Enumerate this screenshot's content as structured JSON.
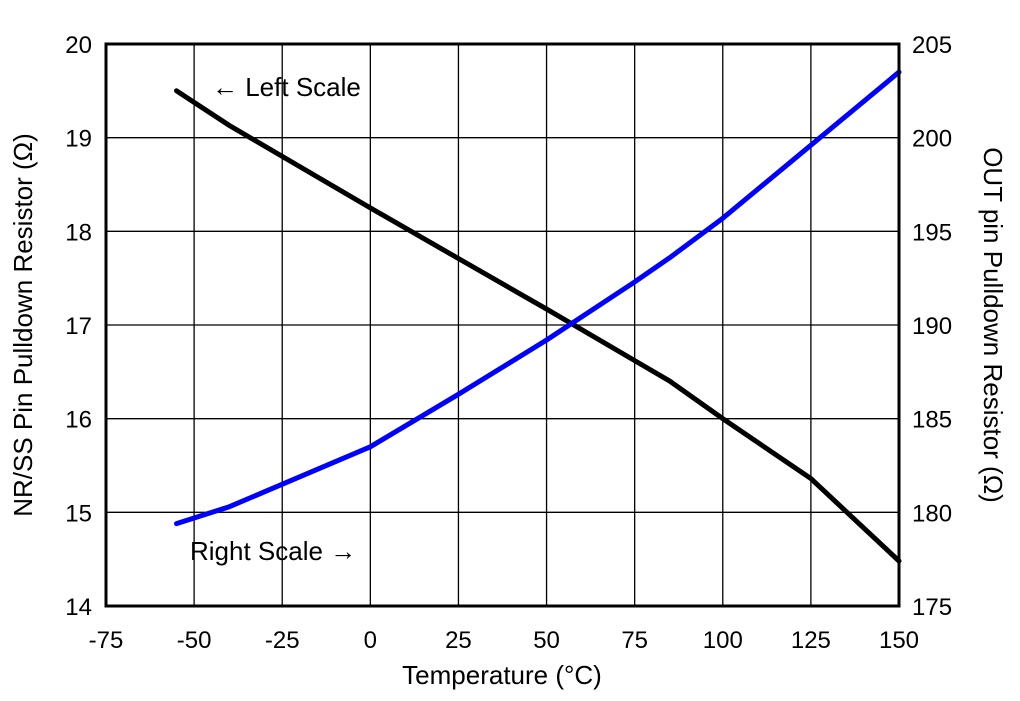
{
  "chart_data": {
    "type": "line",
    "xlabel": "Temperature (°C)",
    "ylabel_left": "NR/SS Pin Pulldown Resistor (Ω)",
    "ylabel_right": "OUT pin Pulldown Resistor (Ω)",
    "xlim": [
      -75,
      150
    ],
    "ylim_left": [
      14,
      20
    ],
    "ylim_right": [
      175,
      205
    ],
    "x_ticks": [
      "-75",
      "-50",
      "-25",
      "0",
      "25",
      "50",
      "75",
      "100",
      "125",
      "150"
    ],
    "y_ticks_left": [
      "14",
      "15",
      "16",
      "17",
      "18",
      "19",
      "20"
    ],
    "y_ticks_right": [
      "175",
      "180",
      "185",
      "190",
      "195",
      "200",
      "205"
    ],
    "grid": true,
    "annotations": {
      "left": "← Left Scale",
      "right": "Right Scale →"
    },
    "series": [
      {
        "axis": "left",
        "color": "#000000",
        "x": [
          -55,
          -40,
          0,
          25,
          50,
          75,
          85,
          100,
          125,
          150
        ],
        "y": [
          19.5,
          19.13,
          18.25,
          17.71,
          17.17,
          16.62,
          16.4,
          16.0,
          15.36,
          14.48
        ]
      },
      {
        "axis": "right",
        "color": "#0000ff",
        "x": [
          -55,
          -40,
          0,
          25,
          50,
          75,
          85,
          100,
          125,
          150
        ],
        "y": [
          179.4,
          180.3,
          183.5,
          186.3,
          189.2,
          192.3,
          193.6,
          195.7,
          199.6,
          203.5
        ]
      }
    ]
  }
}
